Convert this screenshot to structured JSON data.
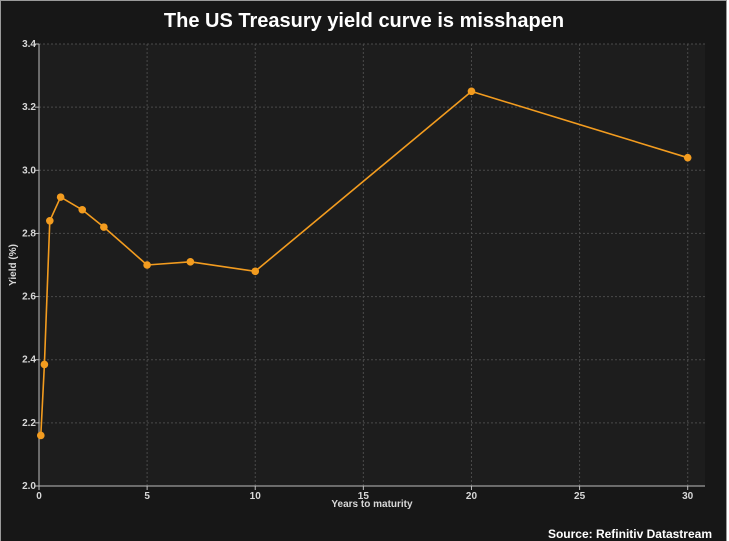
{
  "chart_data": {
    "type": "line",
    "title": "The US Treasury yield curve is misshapen",
    "xlabel": "Years to maturity",
    "ylabel": "Yield (%)",
    "xlim": [
      0,
      30.8
    ],
    "ylim": [
      2.0,
      3.4
    ],
    "x_ticks": [
      0,
      5,
      10,
      15,
      20,
      25,
      30
    ],
    "y_ticks": [
      2.0,
      2.2,
      2.4,
      2.6,
      2.8,
      3.0,
      3.2,
      3.4
    ],
    "grid": true,
    "series": [
      {
        "x": [
          0.083,
          0.25,
          0.5,
          1,
          2,
          3,
          5,
          7,
          10,
          20,
          30
        ],
        "y": [
          2.16,
          2.385,
          2.84,
          2.915,
          2.875,
          2.82,
          2.7,
          2.71,
          2.68,
          3.25,
          3.04
        ],
        "color": "#f39c1f"
      }
    ],
    "source": "Source: Refinitiv Datastream"
  }
}
